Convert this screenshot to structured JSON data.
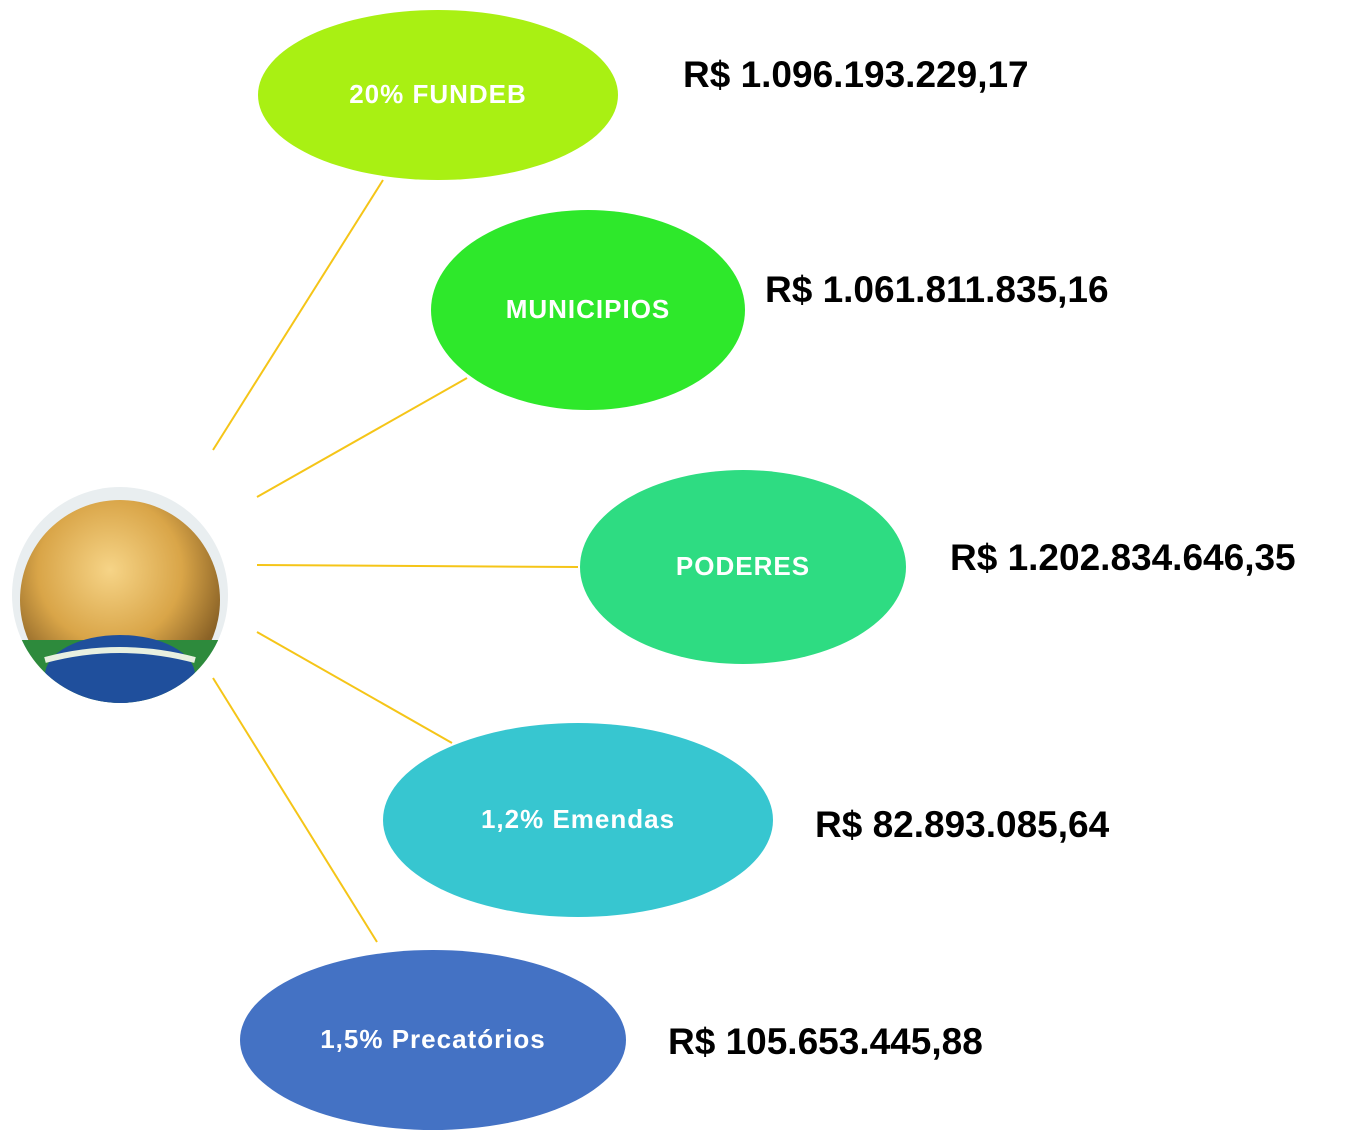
{
  "nodes": [
    {
      "label": "20% FUNDEB",
      "amount": "R$ 1.096.193.229,17",
      "color": "#a9f013"
    },
    {
      "label": "MUNICIPIOS",
      "amount": "R$ 1.061.811.835,16",
      "color": "#2ee82b"
    },
    {
      "label": "PODERES",
      "amount": "R$ 1.202.834.646,35",
      "color": "#2edc82"
    },
    {
      "label": "1,2% Emendas",
      "amount": "R$ 82.893.085,64",
      "color": "#37c6d0"
    },
    {
      "label": "1,5% Precatórios",
      "amount": "R$ 105.653.445,88",
      "color": "#4472c4"
    }
  ]
}
